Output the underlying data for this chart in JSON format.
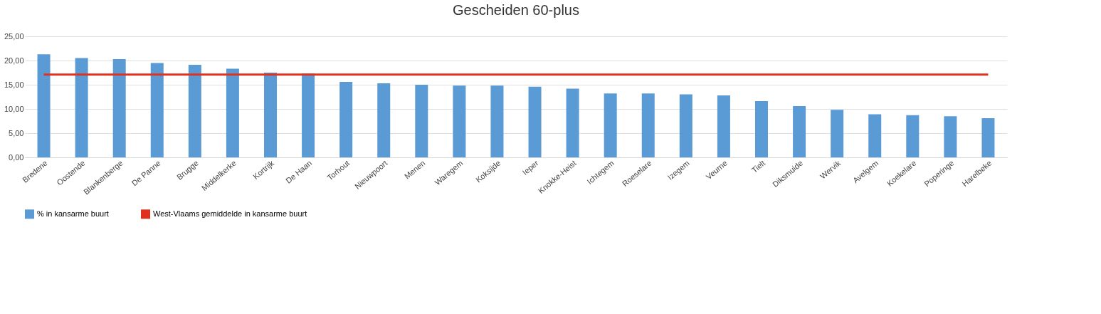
{
  "chart_data": {
    "type": "bar",
    "title": "Gescheiden 60-plus",
    "categories": [
      "Bredene",
      "Oostende",
      "Blankenberge",
      "De Panne",
      "Brugge",
      "Middelkerke",
      "Kortrijk",
      "De Haan",
      "Torhout",
      "Nieuwpoort",
      "Menen",
      "Waregem",
      "Koksijde",
      "Ieper",
      "Knokke-Heist",
      "Ichtegem",
      "Roeselare",
      "Izegem",
      "Veurne",
      "Tielt",
      "Diksmuide",
      "Wervik",
      "Avelgem",
      "Koekelare",
      "Poperinge",
      "Harelbeke"
    ],
    "series": [
      {
        "name": "% in kansarme buurt",
        "type": "bar",
        "color": "#5b9bd5",
        "values": [
          21.3,
          20.5,
          20.3,
          19.5,
          19.1,
          18.3,
          17.5,
          17.3,
          15.6,
          15.3,
          15.0,
          14.8,
          14.8,
          14.6,
          14.2,
          13.2,
          13.2,
          13.0,
          12.8,
          11.6,
          10.6,
          9.8,
          8.9,
          8.7,
          8.5,
          8.1
        ]
      },
      {
        "name": "West-Vlaams gemiddelde in kansarme buurt",
        "type": "line",
        "color": "#e0301e",
        "values": [
          17.1,
          17.1,
          17.1,
          17.1,
          17.1,
          17.1,
          17.1,
          17.1,
          17.1,
          17.1,
          17.1,
          17.1,
          17.1,
          17.1,
          17.1,
          17.1,
          17.1,
          17.1,
          17.1,
          17.1,
          17.1,
          17.1,
          17.1,
          17.1,
          17.1,
          17.1
        ]
      }
    ],
    "ylim": [
      0,
      25
    ],
    "yticks": [
      {
        "value": 0,
        "label": "0,00"
      },
      {
        "value": 5,
        "label": "5,00"
      },
      {
        "value": 10,
        "label": "10,00"
      },
      {
        "value": 15,
        "label": "15,00"
      },
      {
        "value": 20,
        "label": "20,00"
      },
      {
        "value": 25,
        "label": "25,00"
      }
    ],
    "grid": "y",
    "legend": "bottom"
  }
}
